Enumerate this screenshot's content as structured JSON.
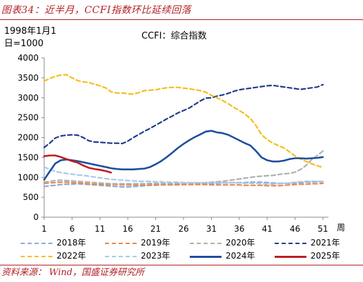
{
  "figure_title": "图表34：近半月，CCFI指数环比延续回落",
  "source": {
    "label": "资料来源：",
    "text": "Wind，国盛证券研究所"
  },
  "chart_data": {
    "type": "line",
    "title": "CCFI：综合指数",
    "unit_note_line1": "1998年1月1",
    "unit_note_line2": "日=1000",
    "xlabel": "周",
    "xlim": [
      1,
      52
    ],
    "ylim": [
      0,
      4000
    ],
    "xticks": [
      1,
      6,
      11,
      16,
      21,
      26,
      31,
      36,
      41,
      46,
      51
    ],
    "yticks": [
      0,
      500,
      1000,
      1500,
      2000,
      2500,
      3000,
      3500,
      4000
    ],
    "grid": false,
    "legend_position": "bottom",
    "series": [
      {
        "name": "2018年",
        "color": "#8fa9d6",
        "dash": "dash",
        "values": [
          770,
          790,
          800,
          820,
          830,
          830,
          840,
          830,
          820,
          810,
          800,
          790,
          780,
          770,
          760,
          760,
          770,
          780,
          790,
          800,
          800,
          810,
          810,
          810,
          810,
          820,
          820,
          830,
          830,
          840,
          840,
          850,
          860,
          860,
          870,
          870,
          870,
          880,
          880,
          880,
          870,
          860,
          850,
          850,
          850,
          860,
          870,
          880,
          880,
          890,
          890
        ]
      },
      {
        "name": "2019年",
        "color": "#e88a4c",
        "dash": "dash",
        "values": [
          850,
          860,
          870,
          880,
          880,
          870,
          860,
          850,
          840,
          830,
          830,
          820,
          820,
          820,
          810,
          810,
          810,
          810,
          810,
          810,
          820,
          820,
          820,
          820,
          820,
          820,
          820,
          820,
          820,
          820,
          810,
          810,
          810,
          810,
          810,
          810,
          800,
          800,
          800,
          800,
          790,
          790,
          790,
          800,
          810,
          820,
          830,
          830,
          840,
          840,
          850
        ]
      },
      {
        "name": "2020年",
        "color": "#b0b0b0",
        "dash": "dash",
        "values": [
          880,
          900,
          920,
          930,
          920,
          910,
          900,
          890,
          880,
          870,
          860,
          850,
          840,
          840,
          840,
          840,
          840,
          840,
          840,
          850,
          850,
          850,
          850,
          850,
          850,
          850,
          860,
          860,
          860,
          870,
          880,
          890,
          900,
          920,
          940,
          960,
          980,
          1000,
          1020,
          1030,
          1040,
          1050,
          1070,
          1090,
          1100,
          1130,
          1200,
          1300,
          1450,
          1550,
          1660
        ]
      },
      {
        "name": "2021年",
        "color": "#1f3c8a",
        "dash": "dash",
        "values": [
          1750,
          1860,
          1990,
          2040,
          2060,
          2070,
          2060,
          2000,
          1920,
          1890,
          1880,
          1870,
          1860,
          1860,
          1850,
          1910,
          2000,
          2080,
          2160,
          2230,
          2310,
          2390,
          2470,
          2540,
          2620,
          2680,
          2740,
          2830,
          2920,
          2990,
          3000,
          3040,
          3070,
          3110,
          3160,
          3200,
          3220,
          3240,
          3260,
          3280,
          3300,
          3310,
          3290,
          3270,
          3250,
          3230,
          3210,
          3230,
          3250,
          3270,
          3330
        ]
      },
      {
        "name": "2022年",
        "color": "#f5be1a",
        "dash": "dash",
        "values": [
          3420,
          3480,
          3540,
          3570,
          3580,
          3500,
          3430,
          3400,
          3380,
          3340,
          3300,
          3250,
          3150,
          3120,
          3120,
          3100,
          3090,
          3130,
          3180,
          3190,
          3200,
          3230,
          3250,
          3260,
          3260,
          3240,
          3230,
          3200,
          3180,
          3140,
          3060,
          3000,
          2930,
          2850,
          2760,
          2680,
          2590,
          2480,
          2300,
          2070,
          1950,
          1860,
          1800,
          1740,
          1640,
          1540,
          1460,
          1400,
          1340,
          1290,
          1250
        ]
      },
      {
        "name": "2023年",
        "color": "#a8c9ea",
        "dash": "dash",
        "values": [
          1260,
          1200,
          1150,
          1120,
          1100,
          1080,
          1060,
          1050,
          1030,
          1010,
          990,
          970,
          950,
          940,
          930,
          920,
          910,
          900,
          900,
          900,
          890,
          890,
          880,
          880,
          880,
          870,
          870,
          870,
          870,
          870,
          870,
          870,
          870,
          870,
          860,
          860,
          850,
          850,
          850,
          840,
          830,
          830,
          840,
          850,
          860,
          880,
          890,
          900,
          900,
          900,
          900
        ]
      },
      {
        "name": "2024年",
        "color": "#1e4e9c",
        "dash": "solid",
        "values": [
          940,
          1150,
          1350,
          1430,
          1450,
          1430,
          1410,
          1380,
          1350,
          1320,
          1290,
          1260,
          1230,
          1210,
          1200,
          1200,
          1200,
          1210,
          1220,
          1260,
          1330,
          1410,
          1510,
          1620,
          1740,
          1840,
          1930,
          2010,
          2080,
          2150,
          2170,
          2130,
          2110,
          2070,
          2000,
          1930,
          1860,
          1800,
          1660,
          1500,
          1430,
          1400,
          1400,
          1420,
          1460,
          1480,
          1480,
          1470,
          1480,
          1490,
          1510
        ]
      },
      {
        "name": "2025年",
        "color": "#c01b22",
        "dash": "solid",
        "values": [
          1530,
          1550,
          1550,
          1510,
          1460,
          1410,
          1370,
          1300,
          1240,
          1210,
          1190,
          1160,
          1120
        ]
      }
    ]
  }
}
